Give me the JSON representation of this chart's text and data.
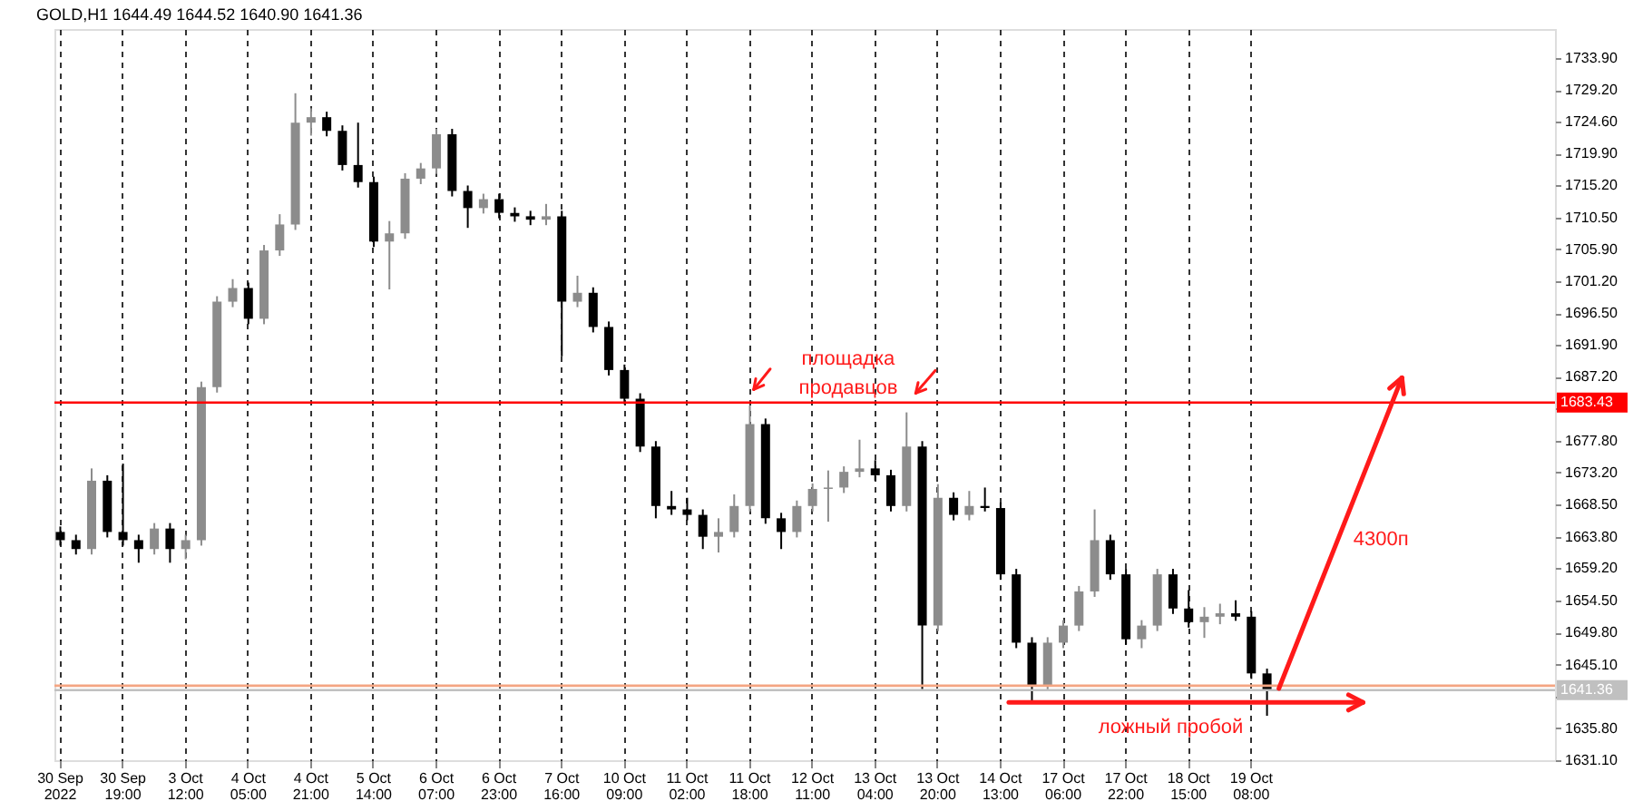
{
  "chart_data": {
    "type": "candlestick",
    "title": "GOLD,H1  1644.49 1644.52 1640.90 1641.36",
    "categories": [
      "30 Sep 2022",
      null,
      null,
      null,
      "30 Sep 19:00",
      null,
      null,
      null,
      "3 Oct 12:00",
      null,
      null,
      null,
      "4 Oct 05:00",
      null,
      null,
      null,
      "4 Oct 21:00",
      null,
      null,
      null,
      "5 Oct 14:00",
      null,
      null,
      null,
      "6 Oct 07:00",
      null,
      null,
      null,
      "6 Oct 23:00",
      null,
      null,
      null,
      "7 Oct 16:00",
      null,
      null,
      null,
      "10 Oct 09:00",
      null,
      null,
      null,
      "11 Oct 02:00",
      null,
      null,
      null,
      "11 Oct 18:00",
      null,
      null,
      null,
      "12 Oct 11:00",
      null,
      null,
      null,
      "13 Oct 04:00",
      null,
      null,
      null,
      "13 Oct 20:00",
      null,
      null,
      null,
      "14 Oct 13:00",
      null,
      null,
      null,
      "17 Oct 06:00",
      null,
      null,
      null,
      "17 Oct 22:00",
      null,
      null,
      null,
      "18 Oct 15:00",
      null,
      null,
      null,
      "19 Oct 08:00",
      null,
      null,
      null,
      null,
      null,
      null,
      null,
      null,
      null,
      null,
      null,
      null,
      null,
      null,
      null,
      null,
      null,
      null,
      null
    ],
    "ohlc": [
      [
        1664.5,
        1665.3,
        1662.5,
        1663.3
      ],
      [
        1663.3,
        1664.1,
        1661.2,
        1662.0
      ],
      [
        1662.0,
        1673.8,
        1661.2,
        1672.0
      ],
      [
        1672.0,
        1672.8,
        1663.7,
        1664.5
      ],
      [
        1664.5,
        1674.5,
        1662.5,
        1663.3
      ],
      [
        1663.3,
        1664.1,
        1660.0,
        1662.0
      ],
      [
        1662.0,
        1665.8,
        1661.2,
        1665.0
      ],
      [
        1665.0,
        1665.8,
        1660.0,
        1662.0
      ],
      [
        1662.0,
        1664.1,
        1660.5,
        1663.3
      ],
      [
        1663.3,
        1686.5,
        1662.5,
        1685.7
      ],
      [
        1685.7,
        1699.0,
        1684.9,
        1698.2
      ],
      [
        1698.2,
        1701.5,
        1697.4,
        1700.2
      ],
      [
        1700.2,
        1701.0,
        1694.9,
        1695.7
      ],
      [
        1695.7,
        1706.5,
        1694.9,
        1705.7
      ],
      [
        1705.7,
        1711.0,
        1704.9,
        1709.5
      ],
      [
        1709.5,
        1728.7,
        1708.7,
        1724.4
      ],
      [
        1724.4,
        1726.5,
        1722.5,
        1725.2
      ],
      [
        1725.2,
        1726.0,
        1722.4,
        1723.2
      ],
      [
        1723.2,
        1724.0,
        1717.4,
        1718.2
      ],
      [
        1718.2,
        1724.4,
        1714.9,
        1715.7
      ],
      [
        1715.7,
        1716.5,
        1706.2,
        1707.0
      ],
      [
        1707.0,
        1710.0,
        1700.0,
        1708.2
      ],
      [
        1708.2,
        1717.0,
        1707.4,
        1716.2
      ],
      [
        1716.2,
        1718.5,
        1715.4,
        1717.7
      ],
      [
        1717.7,
        1723.5,
        1716.9,
        1722.7
      ],
      [
        1722.7,
        1723.5,
        1713.6,
        1714.4
      ],
      [
        1714.4,
        1715.2,
        1709.0,
        1711.9
      ],
      [
        1711.9,
        1714.0,
        1711.1,
        1713.2
      ],
      [
        1713.2,
        1714.0,
        1710.4,
        1711.2
      ],
      [
        1711.2,
        1712.0,
        1709.9,
        1710.7
      ],
      [
        1710.7,
        1711.5,
        1709.4,
        1710.2
      ],
      [
        1710.2,
        1712.5,
        1709.4,
        1710.7
      ],
      [
        1710.7,
        1711.5,
        1690.2,
        1698.2
      ],
      [
        1698.2,
        1702.0,
        1697.4,
        1699.5
      ],
      [
        1699.5,
        1700.3,
        1693.7,
        1694.5
      ],
      [
        1694.5,
        1695.3,
        1687.4,
        1688.2
      ],
      [
        1688.2,
        1689.0,
        1683.2,
        1684.0
      ],
      [
        1684.0,
        1684.8,
        1676.2,
        1677.0
      ],
      [
        1677.0,
        1677.8,
        1666.5,
        1668.3
      ],
      [
        1668.3,
        1670.5,
        1667.0,
        1667.8
      ],
      [
        1667.8,
        1669.5,
        1666.2,
        1667.0
      ],
      [
        1667.0,
        1667.8,
        1662.0,
        1663.8
      ],
      [
        1663.8,
        1666.5,
        1661.5,
        1664.5
      ],
      [
        1664.5,
        1670.0,
        1663.7,
        1668.3
      ],
      [
        1668.3,
        1683.0,
        1667.5,
        1680.3
      ],
      [
        1680.3,
        1681.1,
        1665.7,
        1666.5
      ],
      [
        1666.5,
        1667.3,
        1662.0,
        1664.5
      ],
      [
        1664.5,
        1669.1,
        1663.7,
        1668.3
      ],
      [
        1668.3,
        1671.6,
        1667.5,
        1670.8
      ],
      [
        1670.8,
        1673.5,
        1666.0,
        1671.0
      ],
      [
        1671.0,
        1674.1,
        1670.2,
        1673.3
      ],
      [
        1673.3,
        1678.0,
        1672.5,
        1673.8
      ],
      [
        1673.8,
        1675.0,
        1672.0,
        1672.8
      ],
      [
        1672.8,
        1673.6,
        1667.5,
        1668.3
      ],
      [
        1668.3,
        1682.0,
        1667.5,
        1677.0
      ],
      [
        1677.0,
        1677.8,
        1641.5,
        1650.8
      ],
      [
        1650.8,
        1671.5,
        1650.0,
        1669.5
      ],
      [
        1669.5,
        1670.3,
        1666.2,
        1667.0
      ],
      [
        1667.0,
        1670.5,
        1666.2,
        1668.3
      ],
      [
        1668.3,
        1671.0,
        1667.5,
        1668.0
      ],
      [
        1668.0,
        1668.8,
        1657.5,
        1658.3
      ],
      [
        1658.3,
        1659.1,
        1647.5,
        1648.3
      ],
      [
        1648.3,
        1649.1,
        1639.6,
        1642.1
      ],
      [
        1642.1,
        1649.1,
        1641.3,
        1648.3
      ],
      [
        1648.3,
        1651.6,
        1647.5,
        1650.8
      ],
      [
        1650.8,
        1656.6,
        1650.0,
        1655.8
      ],
      [
        1655.8,
        1667.8,
        1655.0,
        1663.3
      ],
      [
        1663.3,
        1664.1,
        1657.5,
        1658.3
      ],
      [
        1658.3,
        1659.1,
        1648.0,
        1648.8
      ],
      [
        1648.8,
        1651.6,
        1647.5,
        1650.8
      ],
      [
        1650.8,
        1659.1,
        1650.0,
        1658.3
      ],
      [
        1658.3,
        1659.1,
        1652.5,
        1653.3
      ],
      [
        1653.3,
        1656.0,
        1650.5,
        1651.3
      ],
      [
        1651.3,
        1653.5,
        1649.0,
        1652.1
      ],
      [
        1652.1,
        1654.0,
        1651.0,
        1652.6
      ],
      [
        1652.6,
        1654.5,
        1651.5,
        1652.1
      ],
      [
        1652.1,
        1652.9,
        1643.0,
        1643.8
      ],
      [
        1643.8,
        1644.5,
        1637.6,
        1641.36
      ],
      null,
      null,
      null,
      null,
      null,
      null,
      null,
      null,
      null,
      null,
      null,
      null,
      null,
      null,
      null,
      null,
      null,
      null
    ],
    "colors": [
      "#000000",
      "#000000",
      "#8c8c8c",
      "#000000",
      "#000000",
      "#000000",
      "#8c8c8c",
      "#000000",
      "#8c8c8c",
      "#8c8c8c",
      "#8c8c8c",
      "#8c8c8c",
      "#000000",
      "#8c8c8c",
      "#8c8c8c",
      "#8c8c8c",
      "#8c8c8c",
      "#000000",
      "#000000",
      "#000000",
      "#000000",
      "#8c8c8c",
      "#8c8c8c",
      "#8c8c8c",
      "#8c8c8c",
      "#000000",
      "#000000",
      "#8c8c8c",
      "#000000",
      "#000000",
      "#000000",
      "#8c8c8c",
      "#000000",
      "#8c8c8c",
      "#000000",
      "#000000",
      "#000000",
      "#000000",
      "#000000",
      "#000000",
      "#000000",
      "#000000",
      "#8c8c8c",
      "#8c8c8c",
      "#8c8c8c",
      "#000000",
      "#000000",
      "#8c8c8c",
      "#8c8c8c",
      "#8c8c8c",
      "#8c8c8c",
      "#8c8c8c",
      "#000000",
      "#000000",
      "#8c8c8c",
      "#000000",
      "#8c8c8c",
      "#000000",
      "#8c8c8c",
      "#000000",
      "#000000",
      "#000000",
      "#000000",
      "#8c8c8c",
      "#8c8c8c",
      "#8c8c8c",
      "#8c8c8c",
      "#000000",
      "#000000",
      "#8c8c8c",
      "#8c8c8c",
      "#000000",
      "#000000",
      "#8c8c8c",
      "#8c8c8c",
      "#000000",
      "#000000",
      "#000000",
      null,
      null,
      null,
      null,
      null,
      null,
      null,
      null,
      null,
      null,
      null,
      null,
      null,
      null,
      null,
      null,
      null,
      null
    ],
    "ylim": [
      1631.1,
      1738.1
    ],
    "yticks": [
      {
        "value": 1733.9,
        "label": "1733.90"
      },
      {
        "value": 1729.2,
        "label": "1729.20"
      },
      {
        "value": 1724.6,
        "label": "1724.60"
      },
      {
        "value": 1719.9,
        "label": "1719.90"
      },
      {
        "value": 1715.2,
        "label": "1715.20"
      },
      {
        "value": 1710.5,
        "label": "1710.50"
      },
      {
        "value": 1705.9,
        "label": "1705.90"
      },
      {
        "value": 1701.2,
        "label": "1701.20"
      },
      {
        "value": 1696.5,
        "label": "1696.50"
      },
      {
        "value": 1691.9,
        "label": "1691.90"
      },
      {
        "value": 1687.2,
        "label": "1687.20"
      },
      {
        "value": 1682.5,
        "label": null
      },
      {
        "value": 1677.8,
        "label": "1677.80"
      },
      {
        "value": 1673.2,
        "label": "1673.20"
      },
      {
        "value": 1668.5,
        "label": "1668.50"
      },
      {
        "value": 1663.8,
        "label": "1663.80"
      },
      {
        "value": 1659.2,
        "label": "1659.20"
      },
      {
        "value": 1654.5,
        "label": "1654.50"
      },
      {
        "value": 1649.8,
        "label": "1649.80"
      },
      {
        "value": 1645.1,
        "label": "1645.10"
      },
      {
        "value": 1640.4,
        "label": null
      },
      {
        "value": 1635.8,
        "label": "1635.80"
      },
      {
        "value": 1631.1,
        "label": "1631.10"
      }
    ],
    "ref_lines": [
      {
        "axis": "y",
        "value": 1683.43,
        "label": "1683.43",
        "color": "#ff0000"
      },
      {
        "axis": "y",
        "value": 1642.0,
        "color": "#f4a582"
      },
      {
        "axis": "y",
        "value": 1641.36,
        "label": "1641.36",
        "color": "#c0c0c0"
      }
    ],
    "grid": "x",
    "annotations": [
      "площадка продавцов",
      "4300п",
      "ложный пробой"
    ]
  }
}
